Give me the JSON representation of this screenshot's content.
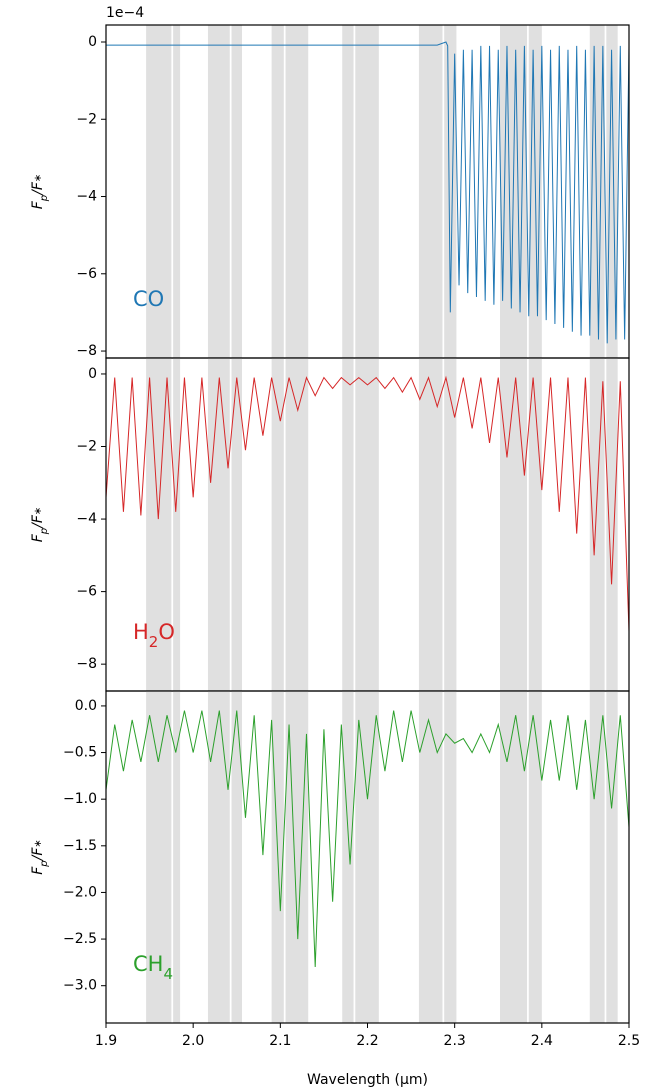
{
  "chart_data": [
    {
      "type": "line",
      "color": "#1f77b4",
      "offset_label": "1e−4",
      "ylabel": [
        "F",
        "p",
        "/F",
        "∗"
      ],
      "annotation": [
        "CO"
      ],
      "xlim": [
        1.9,
        2.5
      ],
      "ylim": [
        -8.18,
        0.44
      ],
      "yticks": [
        0,
        {
          "value": -2,
          "label": "−2"
        },
        {
          "value": -4,
          "label": "−4"
        },
        {
          "value": -6,
          "label": "−6"
        },
        {
          "value": -8,
          "label": "−8"
        }
      ],
      "shaded_regions": [
        [
          1.946,
          1.975
        ],
        [
          1.977,
          1.985
        ],
        [
          2.017,
          2.042
        ],
        [
          2.044,
          2.056
        ],
        [
          2.09,
          2.104
        ],
        [
          2.106,
          2.132
        ],
        [
          2.171,
          2.184
        ],
        [
          2.186,
          2.213
        ],
        [
          2.259,
          2.286
        ],
        [
          2.288,
          2.302
        ],
        [
          2.352,
          2.383
        ],
        [
          2.385,
          2.4
        ],
        [
          2.455,
          2.472
        ],
        [
          2.474,
          2.487
        ]
      ],
      "x": [
        1.9,
        1.95,
        2.0,
        2.05,
        2.1,
        2.15,
        2.2,
        2.25,
        2.28,
        2.29,
        2.292,
        2.295,
        2.3,
        2.305,
        2.31,
        2.315,
        2.32,
        2.325,
        2.33,
        2.335,
        2.34,
        2.345,
        2.35,
        2.355,
        2.36,
        2.365,
        2.37,
        2.375,
        2.38,
        2.385,
        2.39,
        2.395,
        2.4,
        2.405,
        2.41,
        2.415,
        2.42,
        2.425,
        2.43,
        2.435,
        2.44,
        2.445,
        2.45,
        2.455,
        2.46,
        2.465,
        2.47,
        2.475,
        2.48,
        2.485,
        2.49,
        2.495,
        2.5
      ],
      "values": [
        -0.08,
        -0.08,
        -0.08,
        -0.08,
        -0.08,
        -0.08,
        -0.08,
        -0.08,
        -0.08,
        0.0,
        -0.1,
        -7.0,
        -0.3,
        -6.3,
        -0.2,
        -6.5,
        -0.2,
        -6.6,
        -0.1,
        -6.7,
        -0.1,
        -6.8,
        -0.2,
        -6.7,
        -0.1,
        -6.9,
        -0.2,
        -7.0,
        -0.1,
        -7.1,
        -0.2,
        -7.1,
        -0.1,
        -7.2,
        -0.2,
        -7.3,
        -0.1,
        -7.4,
        -0.2,
        -7.5,
        -0.1,
        -7.6,
        -0.2,
        -7.6,
        -0.1,
        -7.7,
        -0.1,
        -7.8,
        -0.2,
        -7.7,
        -0.1,
        -7.7,
        -0.1
      ]
    },
    {
      "type": "line",
      "color": "#d62728",
      "ylabel": [
        "F",
        "p",
        "/F",
        "∗"
      ],
      "annotation": [
        "H",
        "2",
        "O"
      ],
      "xlim": [
        1.9,
        2.5
      ],
      "ylim": [
        -8.74,
        0.44
      ],
      "yticks": [
        0,
        {
          "value": -2,
          "label": "−2"
        },
        {
          "value": -4,
          "label": "−4"
        },
        {
          "value": -6,
          "label": "−6"
        },
        {
          "value": -8,
          "label": "−8"
        }
      ],
      "shaded_regions": [
        [
          1.946,
          1.975
        ],
        [
          1.977,
          1.985
        ],
        [
          2.017,
          2.042
        ],
        [
          2.044,
          2.056
        ],
        [
          2.09,
          2.104
        ],
        [
          2.106,
          2.132
        ],
        [
          2.171,
          2.184
        ],
        [
          2.186,
          2.213
        ],
        [
          2.259,
          2.286
        ],
        [
          2.288,
          2.302
        ],
        [
          2.352,
          2.383
        ],
        [
          2.385,
          2.4
        ],
        [
          2.455,
          2.472
        ],
        [
          2.474,
          2.487
        ]
      ],
      "x": [
        1.9,
        1.91,
        1.92,
        1.93,
        1.94,
        1.95,
        1.96,
        1.97,
        1.98,
        1.99,
        2.0,
        2.01,
        2.02,
        2.03,
        2.04,
        2.05,
        2.06,
        2.07,
        2.08,
        2.09,
        2.1,
        2.11,
        2.12,
        2.13,
        2.14,
        2.15,
        2.16,
        2.17,
        2.18,
        2.19,
        2.2,
        2.21,
        2.22,
        2.23,
        2.24,
        2.25,
        2.26,
        2.27,
        2.28,
        2.29,
        2.3,
        2.31,
        2.32,
        2.33,
        2.34,
        2.35,
        2.36,
        2.37,
        2.38,
        2.39,
        2.4,
        2.41,
        2.42,
        2.43,
        2.44,
        2.45,
        2.46,
        2.47,
        2.48,
        2.49,
        2.5
      ],
      "values": [
        -3.4,
        -0.1,
        -3.8,
        -0.1,
        -3.9,
        -0.1,
        -4.0,
        -0.1,
        -3.8,
        -0.1,
        -3.4,
        -0.1,
        -3.0,
        -0.1,
        -2.6,
        -0.1,
        -2.1,
        -0.1,
        -1.7,
        -0.1,
        -1.3,
        -0.1,
        -1.0,
        -0.1,
        -0.6,
        -0.1,
        -0.4,
        -0.1,
        -0.3,
        -0.1,
        -0.3,
        -0.1,
        -0.4,
        -0.1,
        -0.5,
        -0.1,
        -0.7,
        -0.1,
        -0.9,
        -0.1,
        -1.2,
        -0.1,
        -1.5,
        -0.1,
        -1.9,
        -0.1,
        -2.3,
        -0.1,
        -2.8,
        -0.1,
        -3.2,
        -0.1,
        -3.8,
        -0.1,
        -4.4,
        -0.1,
        -5.0,
        -0.2,
        -5.8,
        -0.2,
        -7.1
      ]
    },
    {
      "type": "line",
      "color": "#2ca02c",
      "ylabel": [
        "F",
        "p",
        "/F",
        "∗"
      ],
      "annotation": [
        "CH",
        "4"
      ],
      "xlabel": "Wavelength (μm)",
      "xlim": [
        1.9,
        2.5
      ],
      "ylim": [
        -3.4,
        0.16
      ],
      "xticks": [
        1.9,
        {
          "value": 2.0,
          "label": "2.0"
        },
        2.1,
        2.2,
        2.3,
        2.4,
        2.5
      ],
      "yticks": [
        {
          "value": 0,
          "label": "0.0"
        },
        {
          "value": -0.5,
          "label": "−0.5"
        },
        {
          "value": -1.0,
          "label": "−1.0"
        },
        {
          "value": -1.5,
          "label": "−1.5"
        },
        {
          "value": -2.0,
          "label": "−2.0"
        },
        {
          "value": -2.5,
          "label": "−2.5"
        },
        {
          "value": -3.0,
          "label": "−3.0"
        }
      ],
      "shaded_regions": [
        [
          1.946,
          1.975
        ],
        [
          1.977,
          1.985
        ],
        [
          2.017,
          2.042
        ],
        [
          2.044,
          2.056
        ],
        [
          2.09,
          2.104
        ],
        [
          2.106,
          2.132
        ],
        [
          2.171,
          2.184
        ],
        [
          2.186,
          2.213
        ],
        [
          2.259,
          2.286
        ],
        [
          2.288,
          2.302
        ],
        [
          2.352,
          2.383
        ],
        [
          2.385,
          2.4
        ],
        [
          2.455,
          2.472
        ],
        [
          2.474,
          2.487
        ]
      ],
      "x": [
        1.9,
        1.91,
        1.92,
        1.93,
        1.94,
        1.95,
        1.96,
        1.97,
        1.98,
        1.99,
        2.0,
        2.01,
        2.02,
        2.03,
        2.04,
        2.05,
        2.06,
        2.07,
        2.08,
        2.09,
        2.1,
        2.11,
        2.12,
        2.13,
        2.14,
        2.15,
        2.16,
        2.17,
        2.18,
        2.19,
        2.2,
        2.21,
        2.22,
        2.23,
        2.24,
        2.25,
        2.26,
        2.27,
        2.28,
        2.29,
        2.3,
        2.31,
        2.32,
        2.33,
        2.34,
        2.35,
        2.36,
        2.37,
        2.38,
        2.39,
        2.4,
        2.41,
        2.42,
        2.43,
        2.44,
        2.45,
        2.46,
        2.47,
        2.48,
        2.49,
        2.5
      ],
      "values": [
        -0.9,
        -0.2,
        -0.7,
        -0.15,
        -0.6,
        -0.1,
        -0.6,
        -0.1,
        -0.5,
        -0.05,
        -0.5,
        -0.05,
        -0.6,
        -0.05,
        -0.9,
        -0.05,
        -1.2,
        -0.1,
        -1.6,
        -0.15,
        -2.2,
        -0.2,
        -2.5,
        -0.3,
        -2.8,
        -0.25,
        -2.1,
        -0.2,
        -1.7,
        -0.15,
        -1.0,
        -0.1,
        -0.7,
        -0.05,
        -0.6,
        -0.05,
        -0.5,
        -0.15,
        -0.5,
        -0.3,
        -0.4,
        -0.35,
        -0.5,
        -0.3,
        -0.5,
        -0.2,
        -0.6,
        -0.1,
        -0.7,
        -0.1,
        -0.8,
        -0.15,
        -0.8,
        -0.1,
        -0.9,
        -0.15,
        -1.0,
        -0.1,
        -1.1,
        -0.1,
        -1.3
      ]
    }
  ]
}
